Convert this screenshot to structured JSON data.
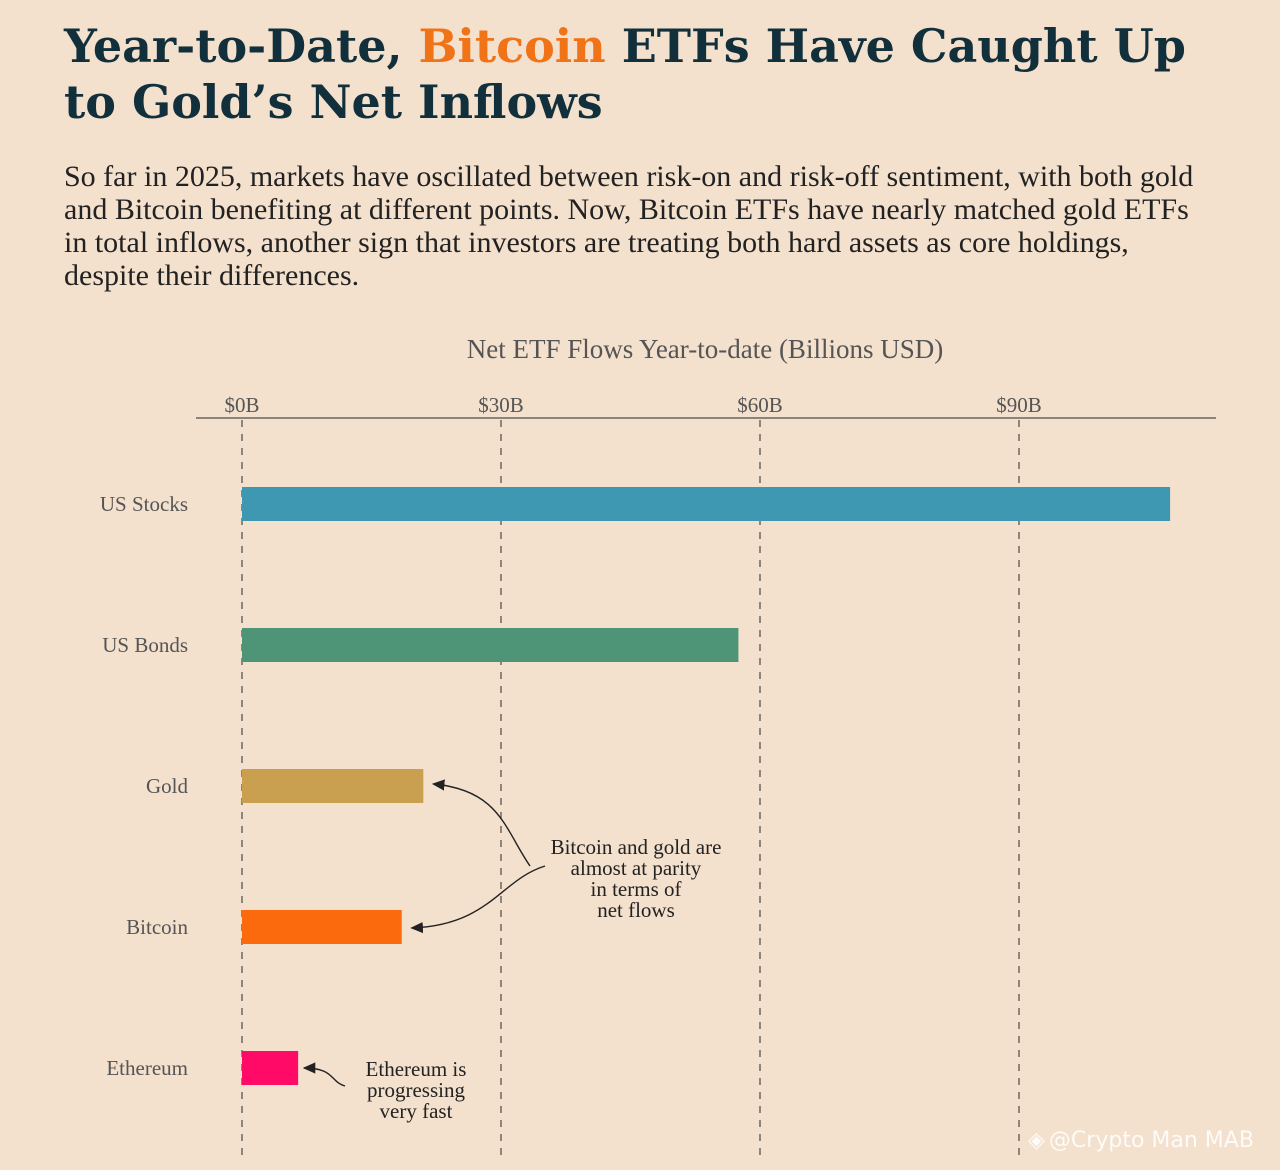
{
  "title": {
    "part1": "Year-to-Date, ",
    "accent": "Bitcoin",
    "part2": " ETFs Have Caught Up to Gold’s Net Inflows"
  },
  "subtitle": "So far in 2025, markets have oscillated between risk-on and risk-off sentiment, with both gold and Bitcoin benefiting at different points. Now, Bitcoin ETFs have nearly matched gold ETFs in total inflows, another sign that investors are treating both hard assets as core holdings, despite their differences.",
  "watermark": "@Crypto Man MAB",
  "chart_data": {
    "type": "bar",
    "orientation": "horizontal",
    "title": "Net ETF Flows Year-to-date (Billions USD)",
    "xlim": [
      0,
      107
    ],
    "ticks": [
      0,
      30,
      60,
      90
    ],
    "tick_labels": [
      "$0B",
      "$30B",
      "$60B",
      "$90B"
    ],
    "grid": "dashed vertical",
    "categories": [
      "US Stocks",
      "US Bonds",
      "Gold",
      "Bitcoin",
      "Ethereum"
    ],
    "values": [
      107.5,
      57.5,
      21,
      18.5,
      6.5
    ],
    "colors": [
      "#3f98b2",
      "#4e9476",
      "#c9a04f",
      "#fb6a0d",
      "#ff0a66"
    ],
    "annotations": [
      {
        "name": "annotation-parity",
        "lines": [
          "Bitcoin and gold are",
          "almost at parity",
          "in terms of",
          "net flows"
        ]
      },
      {
        "name": "annotation-ethereum",
        "lines": [
          "Ethereum is",
          "progressing",
          "very fast"
        ]
      }
    ]
  }
}
